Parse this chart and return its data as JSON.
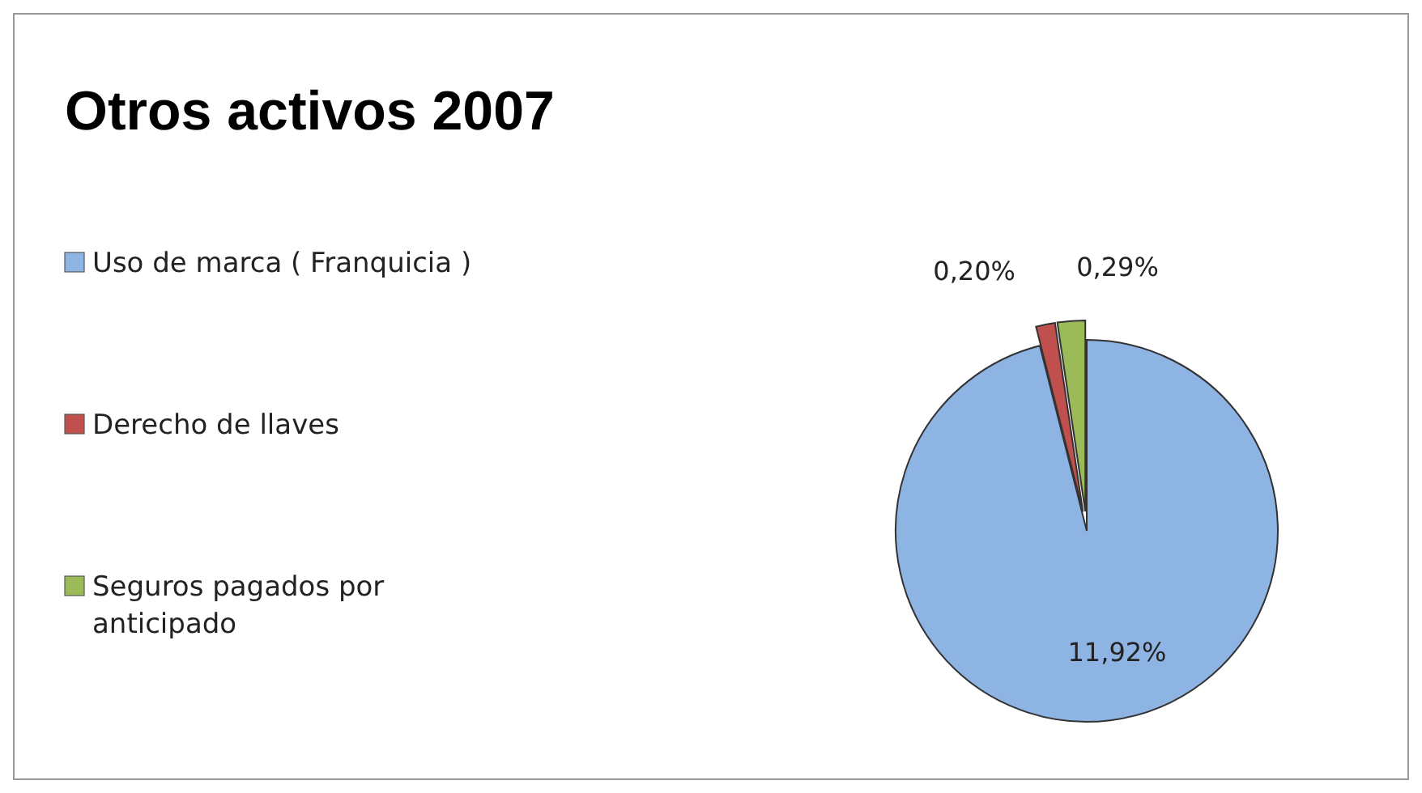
{
  "chart_data": {
    "type": "pie",
    "title": "Otros activos 2007",
    "categories": [
      "Uso de marca  ( Franquicia )",
      "Derecho de llaves",
      "Seguros pagados por anticipado"
    ],
    "values": [
      11.92,
      0.2,
      0.29
    ],
    "colors": [
      "#8eb4e3",
      "#c0504d",
      "#9bbb59"
    ],
    "value_labels": [
      "11,92%",
      "0,20%",
      "0,29%"
    ],
    "legend": "left"
  }
}
